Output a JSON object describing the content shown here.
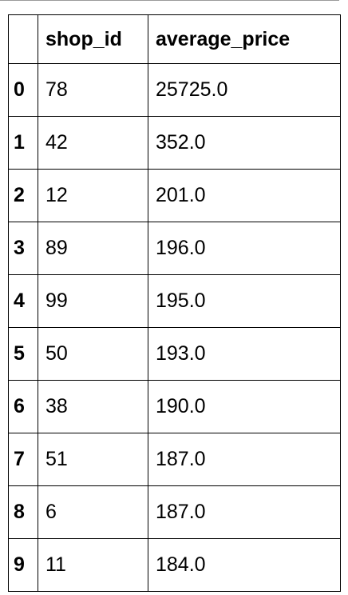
{
  "table": {
    "columns": [
      "shop_id",
      "average_price"
    ],
    "rows": [
      {
        "index": "0",
        "shop_id": "78",
        "average_price": "25725.0"
      },
      {
        "index": "1",
        "shop_id": "42",
        "average_price": "352.0"
      },
      {
        "index": "2",
        "shop_id": "12",
        "average_price": "201.0"
      },
      {
        "index": "3",
        "shop_id": "89",
        "average_price": "196.0"
      },
      {
        "index": "4",
        "shop_id": "99",
        "average_price": "195.0"
      },
      {
        "index": "5",
        "shop_id": "50",
        "average_price": "193.0"
      },
      {
        "index": "6",
        "shop_id": "38",
        "average_price": "190.0"
      },
      {
        "index": "7",
        "shop_id": "51",
        "average_price": "187.0"
      },
      {
        "index": "8",
        "shop_id": "6",
        "average_price": "187.0"
      },
      {
        "index": "9",
        "shop_id": "11",
        "average_price": "184.0"
      }
    ]
  },
  "chart_data": {
    "type": "table",
    "columns": [
      "shop_id",
      "average_price"
    ],
    "index": [
      0,
      1,
      2,
      3,
      4,
      5,
      6,
      7,
      8,
      9
    ],
    "rows": [
      [
        78,
        25725.0
      ],
      [
        42,
        352.0
      ],
      [
        12,
        201.0
      ],
      [
        89,
        196.0
      ],
      [
        99,
        195.0
      ],
      [
        50,
        193.0
      ],
      [
        38,
        190.0
      ],
      [
        51,
        187.0
      ],
      [
        6,
        187.0
      ],
      [
        11,
        184.0
      ]
    ]
  }
}
